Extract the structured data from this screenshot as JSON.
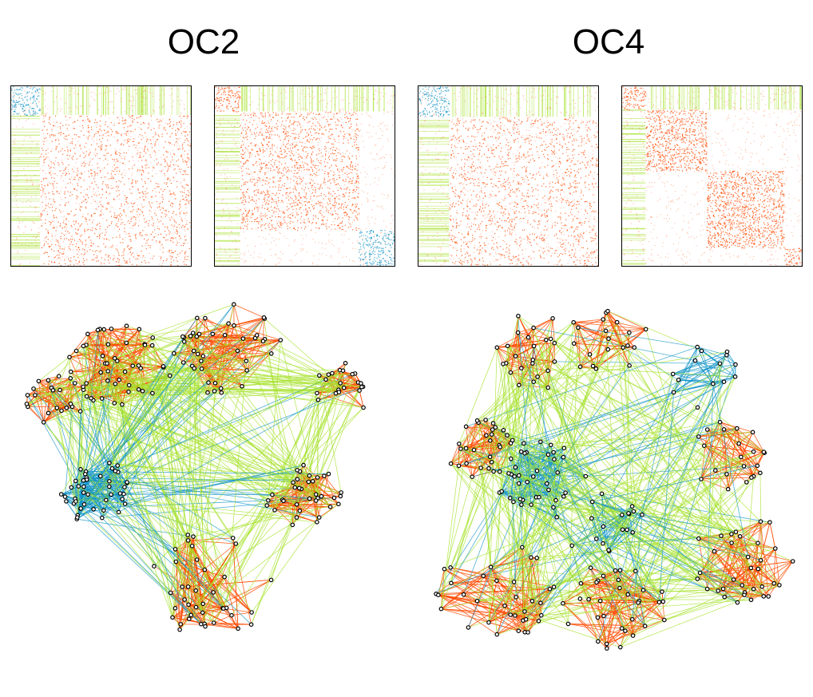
{
  "titles": {
    "left": "OC2",
    "right": "OC4"
  },
  "colors": {
    "blue": "#1596c8",
    "orange": "#ff4a00",
    "green": "#a6e22b",
    "teal": "#20b2a0",
    "node_stroke": "#000000",
    "node_fill": "#ffffff"
  },
  "panels": [
    {
      "id": "oc2-matrix-a",
      "blocks": [
        {
          "from": 0.0,
          "to": 0.16,
          "color": "blue"
        },
        {
          "from": 0.16,
          "to": 1.0,
          "color": "orange"
        }
      ]
    },
    {
      "id": "oc2-matrix-b",
      "blocks": [
        {
          "from": 0.0,
          "to": 0.14,
          "color": "orange"
        },
        {
          "from": 0.14,
          "to": 0.8,
          "color": "orange"
        },
        {
          "from": 0.8,
          "to": 1.0,
          "color": "blue"
        }
      ]
    },
    {
      "id": "oc4-matrix-a",
      "blocks": [
        {
          "from": 0.0,
          "to": 0.17,
          "color": "blue"
        },
        {
          "from": 0.17,
          "to": 1.0,
          "color": "orange"
        }
      ]
    },
    {
      "id": "oc4-matrix-b",
      "blocks": [
        {
          "from": 0.0,
          "to": 0.13,
          "color": "orange"
        },
        {
          "from": 0.13,
          "to": 0.47,
          "color": "orange"
        },
        {
          "from": 0.47,
          "to": 0.9,
          "color": "orange"
        },
        {
          "from": 0.9,
          "to": 1.0,
          "color": "orange"
        }
      ]
    }
  ],
  "networks": [
    {
      "id": "oc2-network",
      "clusters": [
        {
          "color": "blue",
          "count": 45
        },
        {
          "color": "orange",
          "count": 48
        },
        {
          "color": "orange",
          "count": 42
        },
        {
          "color": "orange",
          "count": 40
        },
        {
          "color": "orange",
          "count": 36
        },
        {
          "color": "orange",
          "count": 22
        },
        {
          "color": "orange",
          "count": 22
        }
      ]
    },
    {
      "id": "oc4-network",
      "clusters": [
        {
          "color": "blue",
          "count": 40
        },
        {
          "color": "orange",
          "count": 24
        },
        {
          "color": "orange",
          "count": 20
        },
        {
          "color": "blue",
          "count": 14
        },
        {
          "color": "orange",
          "count": 30
        },
        {
          "color": "orange",
          "count": 34
        },
        {
          "color": "orange",
          "count": 34
        },
        {
          "color": "orange",
          "count": 34
        },
        {
          "color": "orange",
          "count": 22
        },
        {
          "color": "blue",
          "count": 18
        }
      ]
    }
  ]
}
